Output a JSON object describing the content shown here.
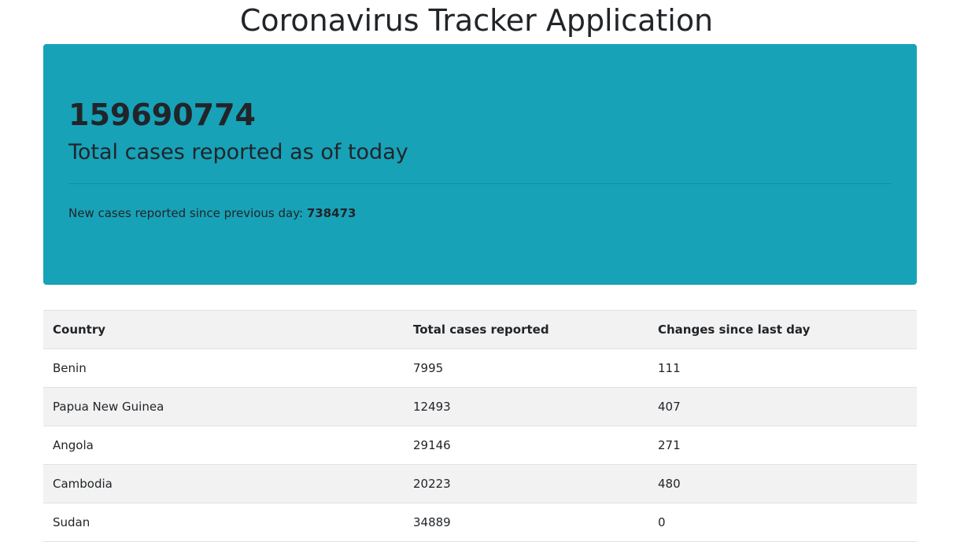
{
  "page": {
    "title": "Coronavirus Tracker Application"
  },
  "summary": {
    "total_cases": "159690774",
    "total_caption": "Total cases reported as of today",
    "new_cases_label": "New cases reported since previous day: ",
    "new_cases_value": "738473",
    "background_color": "#17a2b8"
  },
  "table": {
    "headers": {
      "country": "Country",
      "total": "Total cases reported",
      "change": "Changes since last day"
    },
    "rows": [
      {
        "country": "Benin",
        "total": "7995",
        "change": "111"
      },
      {
        "country": "Papua New Guinea",
        "total": "12493",
        "change": "407"
      },
      {
        "country": "Angola",
        "total": "29146",
        "change": "271"
      },
      {
        "country": "Cambodia",
        "total": "20223",
        "change": "480"
      },
      {
        "country": "Sudan",
        "total": "34889",
        "change": "0"
      }
    ]
  }
}
